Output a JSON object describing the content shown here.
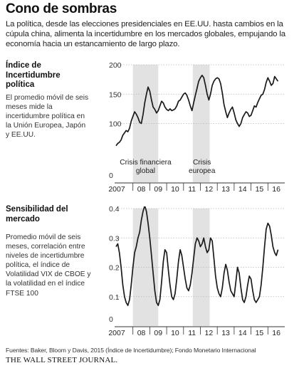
{
  "header": {
    "title": "Cono de sombras",
    "intro": "La política, desde las elecciones presidenciales en EE.UU. hasta cambios en la cúpula china, alimenta la incertidumbre en los mercados globales, empujando la economía hacia un estancamiento de largo plazo."
  },
  "sections": {
    "uncertainty": {
      "title": "Índice de Incertidumbre política",
      "description": "El promedio móvil de seis meses mide la incertidumbre política en la Unión Europea, Japón y EE.UU."
    },
    "sensitivity": {
      "title": "Sensibilidad del mercado",
      "description": "Promedio móvil de seis meses, correlación entre niveles de incertidumbre política, el índice de Volatilidad VIX de CBOE y la volatilidad en el índice FTSE 100"
    }
  },
  "colors": {
    "line": "#1a1a1a",
    "shade": "#e2e2e2",
    "grid": "#b8b8b8",
    "axis": "#333333"
  },
  "chart_data": [
    {
      "type": "line",
      "x_ticks": [
        "2007",
        "08",
        "09",
        "10",
        "11",
        "12",
        "13",
        "14",
        "15",
        "16"
      ],
      "y_ticks": [
        0,
        100,
        150,
        200
      ],
      "ylim": [
        0,
        200
      ],
      "grid": "horizontal dashed",
      "shaded_periods": [
        {
          "label": [
            "Crisis financiera",
            "global"
          ],
          "start": 2008.0,
          "end": 2009.5
        },
        {
          "label": [
            "Crisis",
            "europea"
          ],
          "start": 2011.55,
          "end": 2012.55
        }
      ],
      "series": [
        {
          "x": [
            2007.0,
            2007.1,
            2007.2,
            2007.3,
            2007.4,
            2007.5,
            2007.6,
            2007.7,
            2007.8,
            2007.9,
            2008.0,
            2008.1,
            2008.2,
            2008.3,
            2008.4,
            2008.5,
            2008.6,
            2008.7,
            2008.8,
            2008.9,
            2009.0,
            2009.1,
            2009.2,
            2009.3,
            2009.4,
            2009.5,
            2009.6,
            2009.7,
            2009.8,
            2009.9,
            2010.0,
            2010.1,
            2010.2,
            2010.3,
            2010.4,
            2010.5,
            2010.6,
            2010.7,
            2010.8,
            2010.9,
            2011.0,
            2011.1,
            2011.2,
            2011.3,
            2011.4,
            2011.5,
            2011.6,
            2011.7,
            2011.8,
            2011.9,
            2012.0,
            2012.1,
            2012.2,
            2012.3,
            2012.4,
            2012.5,
            2012.6,
            2012.7,
            2012.8,
            2012.9,
            2013.0,
            2013.1,
            2013.2,
            2013.3,
            2013.4,
            2013.5,
            2013.6,
            2013.7,
            2013.8,
            2013.9,
            2014.0,
            2014.1,
            2014.2,
            2014.3,
            2014.4,
            2014.5,
            2014.6,
            2014.7,
            2014.8,
            2014.9,
            2015.0,
            2015.1,
            2015.2,
            2015.3,
            2015.4,
            2015.5,
            2015.6,
            2015.7,
            2015.8,
            2015.9,
            2016.0,
            2016.1,
            2016.2,
            2016.3,
            2016.4,
            2016.5,
            2016.6
          ],
          "y": [
            62,
            66,
            68,
            72,
            80,
            84,
            88,
            86,
            92,
            104,
            112,
            120,
            116,
            110,
            102,
            100,
            115,
            135,
            150,
            162,
            155,
            140,
            128,
            124,
            118,
            122,
            130,
            138,
            135,
            128,
            124,
            122,
            125,
            122,
            123,
            125,
            130,
            138,
            140,
            145,
            150,
            152,
            148,
            140,
            130,
            122,
            135,
            148,
            160,
            172,
            178,
            182,
            178,
            165,
            150,
            140,
            150,
            165,
            172,
            176,
            178,
            176,
            168,
            152,
            132,
            120,
            110,
            118,
            124,
            128,
            118,
            106,
            100,
            95,
            100,
            110,
            115,
            120,
            118,
            112,
            114,
            122,
            130,
            128,
            136,
            142,
            148,
            150,
            158,
            170,
            178,
            172,
            165,
            168,
            180,
            176,
            172
          ]
        }
      ]
    },
    {
      "type": "line",
      "x_ticks": [
        "2007",
        "08",
        "09",
        "10",
        "11",
        "12",
        "13",
        "14",
        "15",
        "16"
      ],
      "y_ticks": [
        0,
        0.1,
        0.2,
        0.3,
        0.4
      ],
      "ylim": [
        0,
        0.4
      ],
      "grid": "horizontal dashed",
      "shaded_periods": [
        {
          "start": 2008.0,
          "end": 2009.5
        },
        {
          "start": 2011.55,
          "end": 2012.55
        }
      ],
      "series": [
        {
          "x": [
            2007.0,
            2007.1,
            2007.2,
            2007.3,
            2007.4,
            2007.5,
            2007.6,
            2007.7,
            2007.8,
            2007.9,
            2008.0,
            2008.1,
            2008.2,
            2008.3,
            2008.4,
            2008.5,
            2008.6,
            2008.7,
            2008.8,
            2008.9,
            2009.0,
            2009.1,
            2009.2,
            2009.3,
            2009.4,
            2009.5,
            2009.6,
            2009.7,
            2009.8,
            2009.9,
            2010.0,
            2010.1,
            2010.2,
            2010.3,
            2010.4,
            2010.5,
            2010.6,
            2010.7,
            2010.8,
            2010.9,
            2011.0,
            2011.1,
            2011.2,
            2011.3,
            2011.4,
            2011.5,
            2011.6,
            2011.7,
            2011.8,
            2011.9,
            2012.0,
            2012.1,
            2012.2,
            2012.3,
            2012.4,
            2012.5,
            2012.6,
            2012.7,
            2012.8,
            2012.9,
            2013.0,
            2013.1,
            2013.2,
            2013.3,
            2013.4,
            2013.5,
            2013.6,
            2013.7,
            2013.8,
            2013.9,
            2014.0,
            2014.1,
            2014.2,
            2014.3,
            2014.4,
            2014.5,
            2014.6,
            2014.7,
            2014.8,
            2014.9,
            2015.0,
            2015.1,
            2015.2,
            2015.3,
            2015.4,
            2015.5,
            2015.6,
            2015.7,
            2015.8,
            2015.9,
            2016.0,
            2016.1,
            2016.2,
            2016.3,
            2016.4,
            2016.5,
            2016.6
          ],
          "y": [
            0.27,
            0.28,
            0.25,
            0.2,
            0.14,
            0.1,
            0.08,
            0.07,
            0.09,
            0.14,
            0.2,
            0.25,
            0.27,
            0.3,
            0.32,
            0.36,
            0.39,
            0.41,
            0.39,
            0.35,
            0.3,
            0.24,
            0.18,
            0.12,
            0.08,
            0.07,
            0.09,
            0.15,
            0.22,
            0.26,
            0.25,
            0.19,
            0.14,
            0.1,
            0.09,
            0.11,
            0.16,
            0.22,
            0.26,
            0.24,
            0.2,
            0.16,
            0.13,
            0.12,
            0.14,
            0.18,
            0.23,
            0.28,
            0.3,
            0.29,
            0.27,
            0.28,
            0.3,
            0.27,
            0.25,
            0.26,
            0.3,
            0.29,
            0.23,
            0.17,
            0.13,
            0.11,
            0.1,
            0.13,
            0.18,
            0.21,
            0.19,
            0.15,
            0.12,
            0.11,
            0.1,
            0.15,
            0.2,
            0.18,
            0.13,
            0.09,
            0.08,
            0.1,
            0.14,
            0.17,
            0.16,
            0.12,
            0.09,
            0.08,
            0.09,
            0.1,
            0.14,
            0.2,
            0.27,
            0.33,
            0.35,
            0.34,
            0.31,
            0.27,
            0.25,
            0.24,
            0.26
          ]
        }
      ]
    }
  ],
  "footer": {
    "source": "Fuentes: Baker, Bloom y Davis, 2015 (Índice de Incertidumbre); Fondo Monetario Internacional",
    "logo": "THE WALL STREET JOURNAL."
  }
}
